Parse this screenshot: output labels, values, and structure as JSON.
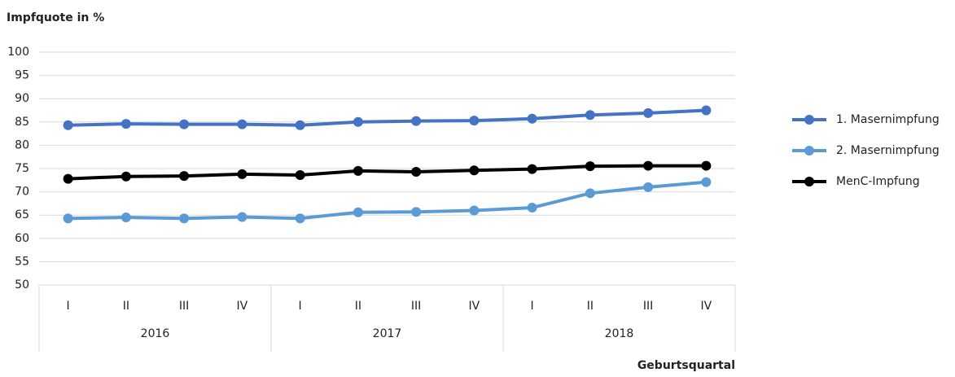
{
  "chart_data": {
    "type": "line",
    "title": "Impfquote in  %",
    "x_label": "Geburtsquartal",
    "categories": [
      "I",
      "II",
      "III",
      "IV",
      "I",
      "II",
      "III",
      "IV",
      "I",
      "II",
      "III",
      "IV"
    ],
    "category_groups": [
      "2016",
      "2017",
      "2018"
    ],
    "series": [
      {
        "name": "1. Masernimpfung",
        "color": "#4472c4",
        "values": [
          84.3,
          84.6,
          84.5,
          84.5,
          84.3,
          85.0,
          85.2,
          85.3,
          85.7,
          86.5,
          86.9,
          87.5
        ]
      },
      {
        "name": "2. Masernimpfung",
        "color": "#5b9bd5",
        "values": [
          64.3,
          64.5,
          64.3,
          64.6,
          64.3,
          65.6,
          65.7,
          66.0,
          66.6,
          69.7,
          71.0,
          72.1
        ]
      },
      {
        "name": "MenC-Impfung",
        "color": "#000000",
        "values": [
          72.8,
          73.3,
          73.4,
          73.8,
          73.6,
          74.5,
          74.3,
          74.6,
          74.9,
          75.5,
          75.6,
          75.6
        ]
      }
    ],
    "ylim": [
      50,
      100
    ],
    "yticks": [
      50,
      55,
      60,
      65,
      70,
      75,
      80,
      85,
      90,
      95,
      100
    ],
    "grid": true,
    "legend": "right"
  }
}
